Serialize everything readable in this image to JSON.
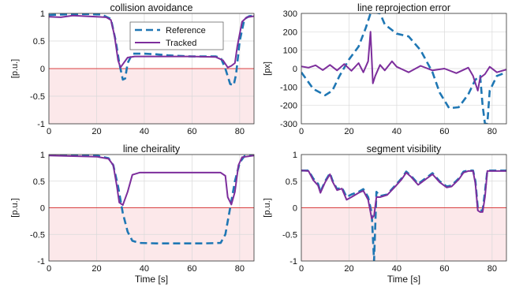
{
  "colors": {
    "reference": "#1f77b4",
    "tracked": "#7d2e9c",
    "shade": "#fce8ea",
    "zero_line": "#d94040"
  },
  "legend": {
    "items": [
      "Reference",
      "Tracked"
    ],
    "placement": "top-center"
  },
  "chart_data": [
    {
      "type": "line",
      "title": "collision avoidance",
      "xlabel": "",
      "ylabel": "[p.u.]",
      "xlim": [
        0,
        86
      ],
      "ylim": [
        -1,
        1
      ],
      "xticks": [
        "0",
        "20",
        "40",
        "60",
        "80"
      ],
      "yticks": [
        "-1",
        "-0.5",
        "0",
        "0.5",
        "1"
      ],
      "grid": true,
      "shade_below_zero": true,
      "series": [
        {
          "name": "Reference",
          "points": [
            [
              0,
              0.97
            ],
            [
              5,
              0.98
            ],
            [
              15,
              0.99
            ],
            [
              22,
              0.98
            ],
            [
              26,
              0.9
            ],
            [
              28,
              0.5
            ],
            [
              29.5,
              0.1
            ],
            [
              31,
              -0.2
            ],
            [
              32,
              -0.18
            ],
            [
              33,
              0.1
            ],
            [
              35,
              0.27
            ],
            [
              40,
              0.27
            ],
            [
              45,
              0.26
            ],
            [
              50,
              0.24
            ],
            [
              60,
              0.22
            ],
            [
              70,
              0.22
            ],
            [
              72,
              0.2
            ],
            [
              74,
              0.0
            ],
            [
              76,
              -0.28
            ],
            [
              77.5,
              -0.3
            ],
            [
              78.5,
              -0.1
            ],
            [
              80,
              0.5
            ],
            [
              82,
              0.9
            ],
            [
              84,
              0.95
            ],
            [
              86,
              0.96
            ]
          ]
        },
        {
          "name": "Tracked",
          "points": [
            [
              0,
              0.94
            ],
            [
              5,
              0.93
            ],
            [
              10,
              0.96
            ],
            [
              15,
              0.95
            ],
            [
              20,
              0.94
            ],
            [
              24,
              0.93
            ],
            [
              26,
              0.88
            ],
            [
              27.5,
              0.6
            ],
            [
              29,
              0.15
            ],
            [
              30,
              0.02
            ],
            [
              31,
              0.08
            ],
            [
              33,
              0.2
            ],
            [
              36,
              0.22
            ],
            [
              40,
              0.22
            ],
            [
              50,
              0.22
            ],
            [
              60,
              0.22
            ],
            [
              70,
              0.21
            ],
            [
              73,
              0.15
            ],
            [
              75,
              0.02
            ],
            [
              76.5,
              0.05
            ],
            [
              78,
              0.1
            ],
            [
              79,
              0.4
            ],
            [
              81,
              0.85
            ],
            [
              83,
              0.93
            ],
            [
              86,
              0.95
            ]
          ]
        }
      ]
    },
    {
      "type": "line",
      "title": "line reprojection error",
      "xlabel": "",
      "ylabel": "[px]",
      "xlim": [
        0,
        86
      ],
      "ylim": [
        -300,
        300
      ],
      "xticks": [
        "0",
        "20",
        "40",
        "60",
        "80"
      ],
      "yticks": [
        "-300",
        "-200",
        "-100",
        "0",
        "100",
        "200",
        "300"
      ],
      "grid": true,
      "shade_below_zero": false,
      "series": [
        {
          "name": "Reference",
          "points": [
            [
              0,
              -20
            ],
            [
              5,
              -110
            ],
            [
              10,
              -145
            ],
            [
              13,
              -120
            ],
            [
              16,
              -40
            ],
            [
              20,
              50
            ],
            [
              24,
              120
            ],
            [
              27,
              220
            ],
            [
              29,
              300
            ],
            [
              31,
              305
            ],
            [
              33,
              300
            ],
            [
              35,
              240
            ],
            [
              40,
              190
            ],
            [
              45,
              175
            ],
            [
              50,
              100
            ],
            [
              55,
              -20
            ],
            [
              58,
              -130
            ],
            [
              62,
              -215
            ],
            [
              66,
              -210
            ],
            [
              70,
              -140
            ],
            [
              73,
              -60
            ],
            [
              75,
              -40
            ],
            [
              76,
              -200
            ],
            [
              77,
              -300
            ],
            [
              78,
              -300
            ],
            [
              79,
              -120
            ],
            [
              82,
              -40
            ],
            [
              86,
              -20
            ]
          ]
        },
        {
          "name": "Tracked",
          "points": [
            [
              0,
              12
            ],
            [
              3,
              5
            ],
            [
              6,
              18
            ],
            [
              9,
              -8
            ],
            [
              12,
              20
            ],
            [
              15,
              -10
            ],
            [
              18,
              25
            ],
            [
              21,
              -12
            ],
            [
              24,
              30
            ],
            [
              26,
              -20
            ],
            [
              28,
              40
            ],
            [
              29,
              200
            ],
            [
              30,
              -80
            ],
            [
              31,
              -40
            ],
            [
              33,
              20
            ],
            [
              35,
              -10
            ],
            [
              38,
              40
            ],
            [
              40,
              10
            ],
            [
              45,
              -20
            ],
            [
              50,
              15
            ],
            [
              55,
              -10
            ],
            [
              60,
              0
            ],
            [
              65,
              -25
            ],
            [
              70,
              5
            ],
            [
              72,
              -40
            ],
            [
              74,
              -120
            ],
            [
              75,
              -50
            ],
            [
              77,
              -30
            ],
            [
              79,
              10
            ],
            [
              82,
              -20
            ],
            [
              86,
              -5
            ]
          ]
        }
      ]
    },
    {
      "type": "line",
      "title": "line cheirality",
      "xlabel": "Time [s]",
      "ylabel": "[p.u.]",
      "xlim": [
        0,
        86
      ],
      "ylim": [
        -1,
        1
      ],
      "xticks": [
        "0",
        "20",
        "40",
        "60",
        "80"
      ],
      "yticks": [
        "-1",
        "-0.5",
        "0",
        "0.5",
        "1"
      ],
      "grid": true,
      "shade_below_zero": true,
      "series": [
        {
          "name": "Reference",
          "points": [
            [
              0,
              0.99
            ],
            [
              10,
              0.99
            ],
            [
              20,
              0.98
            ],
            [
              25,
              0.93
            ],
            [
              27,
              0.8
            ],
            [
              29,
              0.4
            ],
            [
              31,
              -0.1
            ],
            [
              33,
              -0.45
            ],
            [
              35,
              -0.62
            ],
            [
              38,
              -0.66
            ],
            [
              45,
              -0.67
            ],
            [
              55,
              -0.67
            ],
            [
              65,
              -0.67
            ],
            [
              72,
              -0.66
            ],
            [
              74,
              -0.5
            ],
            [
              76,
              0.0
            ],
            [
              78,
              0.5
            ],
            [
              80,
              0.85
            ],
            [
              82,
              0.97
            ],
            [
              86,
              0.99
            ]
          ]
        },
        {
          "name": "Tracked",
          "points": [
            [
              0,
              0.98
            ],
            [
              10,
              0.97
            ],
            [
              20,
              0.96
            ],
            [
              25,
              0.92
            ],
            [
              27,
              0.8
            ],
            [
              28.5,
              0.4
            ],
            [
              29.5,
              0.1
            ],
            [
              31,
              0.05
            ],
            [
              33,
              0.3
            ],
            [
              35,
              0.62
            ],
            [
              38,
              0.66
            ],
            [
              45,
              0.66
            ],
            [
              55,
              0.66
            ],
            [
              65,
              0.66
            ],
            [
              72,
              0.66
            ],
            [
              74,
              0.6
            ],
            [
              75,
              0.2
            ],
            [
              76.5,
              0.06
            ],
            [
              78,
              0.3
            ],
            [
              79.5,
              0.8
            ],
            [
              81,
              0.95
            ],
            [
              86,
              0.98
            ]
          ]
        }
      ]
    },
    {
      "type": "line",
      "title": "segment visibility",
      "xlabel": "Time [s]",
      "ylabel": "[p.u.]",
      "xlim": [
        0,
        86
      ],
      "ylim": [
        -1,
        1
      ],
      "xticks": [
        "0",
        "20",
        "40",
        "60",
        "80"
      ],
      "yticks": [
        "-1",
        "-0.5",
        "0",
        "0.5",
        "1"
      ],
      "grid": true,
      "shade_below_zero": true,
      "series": [
        {
          "name": "Reference",
          "points": [
            [
              0,
              0.7
            ],
            [
              3,
              0.7
            ],
            [
              5,
              0.55
            ],
            [
              7,
              0.45
            ],
            [
              8,
              0.3
            ],
            [
              10,
              0.5
            ],
            [
              12,
              0.65
            ],
            [
              13,
              0.52
            ],
            [
              15,
              0.35
            ],
            [
              17,
              0.38
            ],
            [
              19,
              0.2
            ],
            [
              21,
              0.25
            ],
            [
              24,
              0.3
            ],
            [
              26,
              0.35
            ],
            [
              28,
              0.2
            ],
            [
              29.5,
              -0.1
            ],
            [
              30.5,
              -1.0
            ],
            [
              31.5,
              0.3
            ],
            [
              33,
              0.22
            ],
            [
              36,
              0.25
            ],
            [
              39,
              0.4
            ],
            [
              42,
              0.55
            ],
            [
              44,
              0.68
            ],
            [
              46,
              0.6
            ],
            [
              49,
              0.45
            ],
            [
              52,
              0.55
            ],
            [
              55,
              0.65
            ],
            [
              58,
              0.5
            ],
            [
              61,
              0.4
            ],
            [
              63,
              0.42
            ],
            [
              66,
              0.55
            ],
            [
              68,
              0.68
            ],
            [
              70,
              0.7
            ],
            [
              72,
              0.7
            ],
            [
              73,
              0.5
            ],
            [
              74,
              0.0
            ],
            [
              75,
              -0.05
            ],
            [
              76,
              -0.05
            ],
            [
              77,
              0.3
            ],
            [
              78,
              0.7
            ],
            [
              86,
              0.7
            ]
          ]
        },
        {
          "name": "Tracked",
          "points": [
            [
              0,
              0.7
            ],
            [
              3,
              0.69
            ],
            [
              5,
              0.52
            ],
            [
              7,
              0.42
            ],
            [
              8,
              0.28
            ],
            [
              10,
              0.48
            ],
            [
              12,
              0.63
            ],
            [
              13,
              0.5
            ],
            [
              15,
              0.33
            ],
            [
              17,
              0.36
            ],
            [
              19,
              0.15
            ],
            [
              21,
              0.2
            ],
            [
              24,
              0.28
            ],
            [
              26,
              0.32
            ],
            [
              28,
              0.15
            ],
            [
              29.5,
              -0.2
            ],
            [
              30.5,
              -0.15
            ],
            [
              31.5,
              0.2
            ],
            [
              33,
              0.2
            ],
            [
              36,
              0.24
            ],
            [
              39,
              0.38
            ],
            [
              42,
              0.53
            ],
            [
              44,
              0.66
            ],
            [
              46,
              0.58
            ],
            [
              49,
              0.43
            ],
            [
              52,
              0.53
            ],
            [
              55,
              0.63
            ],
            [
              58,
              0.48
            ],
            [
              61,
              0.38
            ],
            [
              63,
              0.4
            ],
            [
              66,
              0.53
            ],
            [
              68,
              0.66
            ],
            [
              70,
              0.69
            ],
            [
              72,
              0.69
            ],
            [
              73,
              0.45
            ],
            [
              74,
              -0.05
            ],
            [
              75,
              -0.08
            ],
            [
              76,
              -0.08
            ],
            [
              77,
              0.2
            ],
            [
              78,
              0.69
            ],
            [
              86,
              0.69
            ]
          ]
        }
      ]
    }
  ]
}
